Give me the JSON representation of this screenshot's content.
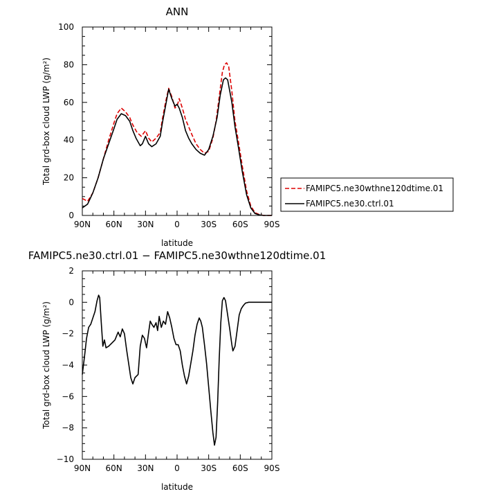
{
  "chart_data": [
    {
      "type": "line",
      "title": "ANN",
      "xlabel": "latitude",
      "ylabel": "Total grd-box cloud LWP (g/m²)",
      "xlim": [
        90,
        -90
      ],
      "ylim": [
        0,
        100
      ],
      "xticks": [
        90,
        60,
        30,
        0,
        -30,
        -60,
        -90
      ],
      "xtick_labels": [
        "90N",
        "60N",
        "30N",
        "0",
        "30S",
        "60S",
        "90S"
      ],
      "yticks": [
        0,
        20,
        40,
        60,
        80,
        100
      ],
      "ytick_labels": [
        "0",
        "20",
        "40",
        "60",
        "80",
        "100"
      ],
      "legend_position": "right",
      "series": [
        {
          "name": "FAMIPC5.ne30wthne120dtime.01",
          "color": "#dd0000",
          "style": "dashed",
          "points": [
            [
              90,
              9
            ],
            [
              85,
              7.5
            ],
            [
              80,
              12
            ],
            [
              75,
              20
            ],
            [
              70,
              30
            ],
            [
              65,
              40
            ],
            [
              60,
              49
            ],
            [
              57,
              54
            ],
            [
              53,
              57
            ],
            [
              49,
              55
            ],
            [
              45,
              52
            ],
            [
              42,
              48
            ],
            [
              38,
              44
            ],
            [
              34,
              42
            ],
            [
              30,
              45
            ],
            [
              27,
              41
            ],
            [
              24,
              39
            ],
            [
              20,
              41
            ],
            [
              16,
              44
            ],
            [
              14,
              51
            ],
            [
              11,
              60
            ],
            [
              8,
              67.5
            ],
            [
              5,
              63
            ],
            [
              2,
              57
            ],
            [
              0,
              58
            ],
            [
              -2,
              62
            ],
            [
              -5,
              57
            ],
            [
              -8,
              51
            ],
            [
              -11,
              47
            ],
            [
              -14,
              43
            ],
            [
              -18,
              38
            ],
            [
              -22,
              35
            ],
            [
              -26,
              33
            ],
            [
              -30,
              34
            ],
            [
              -34,
              41
            ],
            [
              -37,
              50
            ],
            [
              -40,
              63
            ],
            [
              -43,
              76
            ],
            [
              -45,
              80
            ],
            [
              -47,
              81
            ],
            [
              -49,
              79
            ],
            [
              -52,
              66
            ],
            [
              -55,
              50
            ],
            [
              -58,
              40
            ],
            [
              -62,
              26
            ],
            [
              -66,
              13
            ],
            [
              -70,
              5
            ],
            [
              -74,
              1.5
            ],
            [
              -78,
              0.5
            ],
            [
              -82,
              0
            ],
            [
              -90,
              0
            ]
          ]
        },
        {
          "name": "FAMIPC5.ne30.ctrl.01",
          "color": "#000000",
          "style": "solid",
          "points": [
            [
              90,
              4
            ],
            [
              85,
              6
            ],
            [
              80,
              12
            ],
            [
              75,
              20
            ],
            [
              70,
              30
            ],
            [
              65,
              38
            ],
            [
              60,
              46
            ],
            [
              57,
              51
            ],
            [
              53,
              54
            ],
            [
              49,
              53
            ],
            [
              45,
              50
            ],
            [
              42,
              45
            ],
            [
              39,
              41
            ],
            [
              35,
              37
            ],
            [
              33,
              38
            ],
            [
              30,
              42
            ],
            [
              27,
              38
            ],
            [
              24,
              36.5
            ],
            [
              20,
              38
            ],
            [
              16,
              42
            ],
            [
              14,
              49
            ],
            [
              11,
              58
            ],
            [
              8,
              67
            ],
            [
              5,
              62
            ],
            [
              2,
              58
            ],
            [
              0,
              59
            ],
            [
              -2,
              57
            ],
            [
              -5,
              52
            ],
            [
              -8,
              45
            ],
            [
              -11,
              41
            ],
            [
              -14,
              38
            ],
            [
              -18,
              35
            ],
            [
              -22,
              33
            ],
            [
              -26,
              32
            ],
            [
              -30,
              35
            ],
            [
              -34,
              42
            ],
            [
              -38,
              52
            ],
            [
              -41,
              64
            ],
            [
              -44,
              72
            ],
            [
              -46,
              73
            ],
            [
              -48,
              72
            ],
            [
              -52,
              60
            ],
            [
              -55,
              47
            ],
            [
              -58,
              37
            ],
            [
              -62,
              23
            ],
            [
              -66,
              11
            ],
            [
              -70,
              4
            ],
            [
              -74,
              1
            ],
            [
              -78,
              0.3
            ],
            [
              -82,
              0
            ],
            [
              -90,
              0
            ]
          ]
        }
      ]
    },
    {
      "type": "line",
      "title": "FAMIPC5.ne30.ctrl.01 − FAMIPC5.ne30wthne120dtime.01",
      "xlabel": "latitude",
      "ylabel": "Total grd-box cloud LWP (g/m²)",
      "xlim": [
        90,
        -90
      ],
      "ylim": [
        -10,
        2
      ],
      "xticks": [
        90,
        60,
        30,
        0,
        -30,
        -60,
        -90
      ],
      "xtick_labels": [
        "90N",
        "60N",
        "30N",
        "0",
        "30S",
        "60S",
        "90S"
      ],
      "yticks": [
        -10,
        -8,
        -6,
        -4,
        -2,
        0,
        2
      ],
      "ytick_labels": [
        "−10",
        "−8",
        "−6",
        "−4",
        "−2",
        "0",
        "2"
      ],
      "series": [
        {
          "color": "#000000",
          "style": "solid",
          "points": [
            [
              90,
              -4.6
            ],
            [
              88,
              -3.5
            ],
            [
              86,
              -2.3
            ],
            [
              84,
              -1.6
            ],
            [
              82,
              -1.4
            ],
            [
              80,
              -1.0
            ],
            [
              78,
              -0.6
            ],
            [
              76,
              0.1
            ],
            [
              74.5,
              0.45
            ],
            [
              73.5,
              0.3
            ],
            [
              72,
              -1.3
            ],
            [
              70.5,
              -2.8
            ],
            [
              69,
              -2.4
            ],
            [
              67.5,
              -2.9
            ],
            [
              65,
              -2.8
            ],
            [
              62,
              -2.6
            ],
            [
              59,
              -2.4
            ],
            [
              56,
              -1.9
            ],
            [
              54,
              -2.2
            ],
            [
              52,
              -1.7
            ],
            [
              50,
              -2.0
            ],
            [
              48,
              -3.0
            ],
            [
              46,
              -3.9
            ],
            [
              44,
              -4.8
            ],
            [
              42,
              -5.2
            ],
            [
              40,
              -4.8
            ],
            [
              37,
              -4.6
            ],
            [
              35,
              -2.8
            ],
            [
              33,
              -2.1
            ],
            [
              31,
              -2.3
            ],
            [
              29,
              -2.9
            ],
            [
              27,
              -1.9
            ],
            [
              25.5,
              -1.2
            ],
            [
              24,
              -1.4
            ],
            [
              22,
              -1.6
            ],
            [
              20,
              -1.3
            ],
            [
              18.5,
              -1.8
            ],
            [
              17,
              -0.9
            ],
            [
              15,
              -1.6
            ],
            [
              13,
              -1.2
            ],
            [
              11,
              -1.4
            ],
            [
              9,
              -0.6
            ],
            [
              7,
              -1.0
            ],
            [
              5,
              -1.6
            ],
            [
              3,
              -2.3
            ],
            [
              1,
              -2.7
            ],
            [
              -1,
              -2.7
            ],
            [
              -3,
              -3.1
            ],
            [
              -5,
              -4.0
            ],
            [
              -7,
              -4.7
            ],
            [
              -9,
              -5.2
            ],
            [
              -11,
              -4.7
            ],
            [
              -13,
              -3.9
            ],
            [
              -15,
              -3.1
            ],
            [
              -17,
              -2.1
            ],
            [
              -19,
              -1.4
            ],
            [
              -21,
              -1.0
            ],
            [
              -22.5,
              -1.2
            ],
            [
              -24,
              -1.6
            ],
            [
              -26,
              -2.7
            ],
            [
              -28,
              -3.9
            ],
            [
              -30,
              -5.4
            ],
            [
              -32,
              -6.9
            ],
            [
              -34,
              -8.3
            ],
            [
              -35.5,
              -9.1
            ],
            [
              -37,
              -8.6
            ],
            [
              -38.5,
              -6.4
            ],
            [
              -40,
              -3.6
            ],
            [
              -41.5,
              -1.3
            ],
            [
              -43,
              0.1
            ],
            [
              -44.5,
              0.3
            ],
            [
              -46,
              0.1
            ],
            [
              -48,
              -0.8
            ],
            [
              -50,
              -1.7
            ],
            [
              -52,
              -2.7
            ],
            [
              -53,
              -3.1
            ],
            [
              -55,
              -2.8
            ],
            [
              -57,
              -1.8
            ],
            [
              -59,
              -0.8
            ],
            [
              -61,
              -0.4
            ],
            [
              -63,
              -0.2
            ],
            [
              -65,
              -0.05
            ],
            [
              -68,
              0.0
            ],
            [
              -72,
              0.0
            ],
            [
              -78,
              0.0
            ],
            [
              -90,
              0.0
            ]
          ]
        }
      ]
    }
  ]
}
